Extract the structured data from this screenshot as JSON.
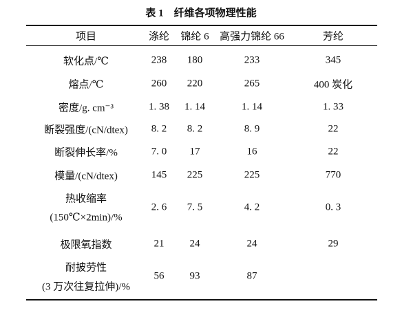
{
  "table": {
    "title": "表 1　纤维各项物理性能",
    "header": [
      "项目",
      "涤纶",
      "锦纶 6",
      "高强力锦纶 66",
      "芳纶"
    ],
    "rows": [
      [
        "软化点/℃",
        "238",
        "180",
        "233",
        "345"
      ],
      [
        "熔点/℃",
        "260",
        "220",
        "265",
        "400 炭化"
      ],
      [
        "密度/g. cm⁻³",
        "1. 38",
        "1. 14",
        "1. 14",
        "1. 33"
      ],
      [
        "断裂强度/(cN/dtex)",
        "8. 2",
        "8. 2",
        "8. 9",
        "22"
      ],
      [
        "断裂伸长率/%",
        "7. 0",
        "17",
        "16",
        "22"
      ],
      [
        "模量/(cN/dtex)",
        "145",
        "225",
        "225",
        "770"
      ],
      [
        [
          "热收缩率",
          "(150℃×2min)/%"
        ],
        "2. 6",
        "7. 5",
        "4. 2",
        "0. 3"
      ],
      [
        "极限氧指数",
        "21",
        "24",
        "24",
        "29"
      ],
      [
        [
          "耐披劳性",
          "(3 万次往复拉伸)/%"
        ],
        "56",
        "93",
        "87",
        ""
      ]
    ]
  }
}
